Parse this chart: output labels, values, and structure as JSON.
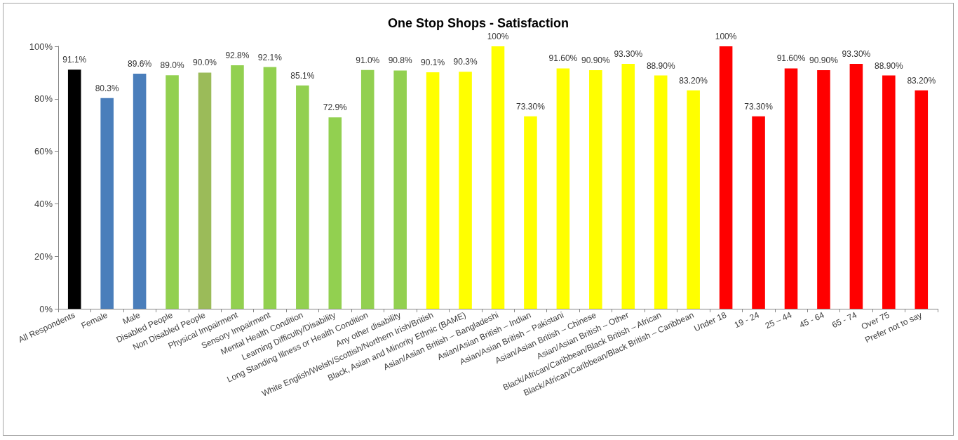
{
  "chart_data": {
    "type": "bar",
    "title": "One Stop Shops - Satisfaction",
    "categories": [
      "All Respondents",
      "Female",
      "Male",
      "Disabled People",
      "Non Disabled People",
      "Physical Impairment",
      "Sensory Impairment",
      "Mental Health Condition",
      "Learning Difficulty/Disability",
      "Long Standing Illness or Health Condition",
      "Any other disability",
      "White English/Welsh/Scottish/Northern Irish/British",
      "Black, Asian and Minority Ethnic (BAME)",
      "Asian/Asian British – Bangladeshi",
      "Asian/Asian British – Indian",
      "Asian/Asian British – Pakistani",
      "Asian/Asian British – Chinese",
      "Asian/Asian British – Other",
      "Black/African/Caribbean/Black British – African",
      "Black/African/Caribbean/Black British – Caribbean",
      "Under 18",
      "19 - 24",
      "25 – 44",
      "45 - 64",
      "65 - 74",
      "Over 75",
      "Prefer not to say"
    ],
    "values": [
      91.1,
      80.3,
      89.6,
      89.0,
      90.0,
      92.8,
      92.1,
      85.1,
      72.9,
      91.0,
      90.8,
      90.1,
      90.3,
      100,
      73.3,
      91.6,
      90.9,
      93.3,
      88.9,
      83.2,
      100,
      73.3,
      91.6,
      90.9,
      93.3,
      88.9,
      83.2
    ],
    "value_labels": [
      "91.1%",
      "80.3%",
      "89.6%",
      "89.0%",
      "90.0%",
      "92.8%",
      "92.1%",
      "85.1%",
      "72.9%",
      "91.0%",
      "90.8%",
      "90.1%",
      "90.3%",
      "100%",
      "73.30%",
      "91.60%",
      "90.90%",
      "93.30%",
      "88.90%",
      "83.20%",
      "100%",
      "73.30%",
      "91.60%",
      "90.90%",
      "93.30%",
      "88.90%",
      "83.20%"
    ],
    "colors": [
      "#000000",
      "#4a7ebb",
      "#4a7ebb",
      "#92d050",
      "#9bbb59",
      "#92d050",
      "#92d050",
      "#92d050",
      "#92d050",
      "#92d050",
      "#92d050",
      "#ffff00",
      "#ffff00",
      "#ffff00",
      "#ffff00",
      "#ffff00",
      "#ffff00",
      "#ffff00",
      "#ffff00",
      "#ffff00",
      "#ff0000",
      "#ff0000",
      "#ff0000",
      "#ff0000",
      "#ff0000",
      "#ff0000",
      "#ff0000"
    ],
    "ylim": [
      0,
      100
    ],
    "yticks": [
      {
        "value": 0,
        "label": "0%"
      },
      {
        "value": 20,
        "label": "20%"
      },
      {
        "value": 40,
        "label": "40%"
      },
      {
        "value": 60,
        "label": "60%"
      },
      {
        "value": 80,
        "label": "80%"
      },
      {
        "value": 100,
        "label": "100%"
      }
    ]
  }
}
